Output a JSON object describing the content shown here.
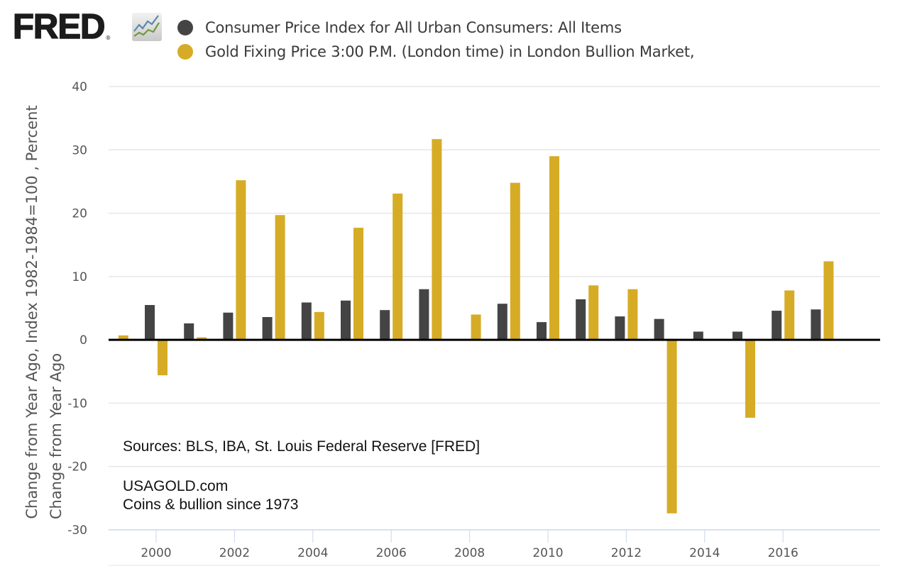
{
  "logo": {
    "text": "FRED",
    "registered_mark": "®",
    "icon": "line-chart-icon"
  },
  "colors": {
    "cpi": "#444444",
    "gold": "#d6ac26",
    "gridline": "#e6e6e6",
    "zero_line": "#000000",
    "axis_line": "#ccd6eb"
  },
  "legend": [
    {
      "label": "Consumer Price Index for All Urban Consumers: All Items",
      "color": "#444444"
    },
    {
      "label": "Gold Fixing Price 3:00 P.M. (London time) in London Bullion Market,",
      "color": "#d6ac26"
    }
  ],
  "annotations": {
    "sources": "Sources:  BLS, IBA, St. Louis Federal Reserve [FRED]",
    "site": "USAGOLD.com",
    "tagline": "Coins & bullion since 1973"
  },
  "chart_data": {
    "type": "bar",
    "title": "",
    "xlabel": "",
    "ylabel": "Change from Year Ago, Index 1982-1984=100 , Percent",
    "ylabel2": "Change from Year Ago",
    "ylim": [
      -30,
      40
    ],
    "yticks": [
      40,
      30,
      20,
      10,
      0,
      -10,
      -20,
      -30
    ],
    "xticks": [
      "2000",
      "2002",
      "2004",
      "2006",
      "2008",
      "2010",
      "2012",
      "2014",
      "2016"
    ],
    "grid": true,
    "legend_position": "top-left",
    "categories": [
      "1999",
      "2000",
      "2001",
      "2002",
      "2003",
      "2004",
      "2005",
      "2006",
      "2007",
      "2008",
      "2009",
      "2010",
      "2011",
      "2012",
      "2013",
      "2014",
      "2015",
      "2016",
      "2017"
    ],
    "series": [
      {
        "name": "Consumer Price Index for All Urban Consumers: All Items",
        "color": "#444444",
        "values": [
          0.0,
          5.5,
          2.6,
          4.3,
          3.6,
          5.9,
          6.2,
          4.7,
          8.0,
          0.0,
          5.7,
          2.8,
          6.4,
          3.7,
          3.3,
          1.3,
          1.3,
          4.6,
          4.8
        ]
      },
      {
        "name": "Gold Fixing Price 3:00 P.M. (London time) in London Bullion Market",
        "color": "#d6ac26",
        "values": [
          0.7,
          -5.6,
          0.4,
          25.2,
          19.7,
          4.4,
          17.7,
          23.1,
          31.7,
          4.0,
          24.8,
          29.0,
          8.6,
          8.0,
          -27.4,
          -0.1,
          -12.3,
          7.8,
          12.4
        ]
      }
    ]
  }
}
